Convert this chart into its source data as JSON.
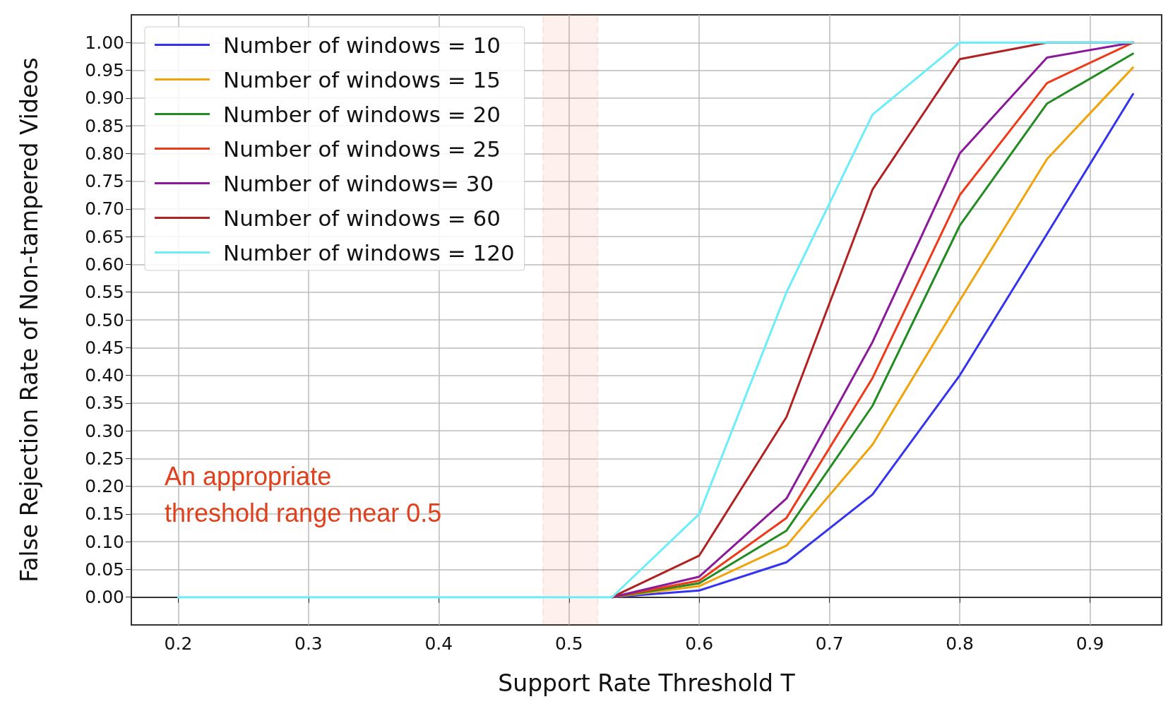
{
  "chart_data": {
    "type": "line",
    "xlabel": "Support Rate Threshold T",
    "ylabel": "False Rejection Rate of Non-tampered Videos",
    "x": [
      0.2,
      0.267,
      0.333,
      0.4,
      0.467,
      0.533,
      0.6,
      0.667,
      0.733,
      0.8,
      0.867,
      0.933
    ],
    "series": [
      {
        "name": "Number of windows = 10",
        "color": "#3333f0",
        "values": [
          null,
          null,
          null,
          null,
          null,
          0,
          0.012,
          0.063,
          0.185,
          0.4,
          0.655,
          0.907
        ]
      },
      {
        "name": "Number of windows = 15",
        "color": "#f0a30a",
        "values": [
          null,
          null,
          null,
          null,
          null,
          0,
          0.02,
          0.093,
          0.275,
          0.535,
          0.79,
          0.955
        ]
      },
      {
        "name": "Number of windows = 20",
        "color": "#228b22",
        "values": [
          null,
          null,
          null,
          null,
          null,
          0,
          0.025,
          0.12,
          0.345,
          0.67,
          0.89,
          0.98
        ]
      },
      {
        "name": "Number of windows = 25",
        "color": "#ee3a18",
        "values": [
          null,
          null,
          null,
          null,
          null,
          0,
          0.03,
          0.143,
          0.395,
          0.725,
          0.927,
          1.0
        ]
      },
      {
        "name": "Number of windows= 30",
        "color": "#8b1a9b",
        "values": [
          null,
          null,
          null,
          null,
          null,
          0,
          0.037,
          0.178,
          0.46,
          0.8,
          0.973,
          1.0
        ]
      },
      {
        "name": "Number of windows = 60",
        "color": "#b22222",
        "values": [
          null,
          null,
          null,
          null,
          null,
          0,
          0.075,
          0.325,
          0.735,
          0.97,
          1.0,
          1.0
        ]
      },
      {
        "name": "Number of windows = 120",
        "color": "#6ceefa",
        "values": [
          0,
          0,
          0,
          0,
          0,
          0,
          0.15,
          0.55,
          0.87,
          1.0,
          1.0,
          1.0
        ]
      }
    ],
    "xlim": [
      0.164,
      0.955
    ],
    "xticks": [
      0.2,
      0.3,
      0.4,
      0.5,
      0.6,
      0.7,
      0.8,
      0.9
    ],
    "ylim": [
      -0.05,
      1.05
    ],
    "yticks": [
      {
        "value": 0,
        "label": "0.00"
      },
      {
        "value": 0.05,
        "label": "0.05"
      },
      {
        "value": 0.1,
        "label": "0.10"
      },
      {
        "value": 0.15,
        "label": "0.15"
      },
      {
        "value": 0.2,
        "label": "0.20"
      },
      {
        "value": 0.25,
        "label": "0.25"
      },
      {
        "value": 0.3,
        "label": "0.30"
      },
      {
        "value": 0.35,
        "label": "0.35"
      },
      {
        "value": 0.4,
        "label": "0.40"
      },
      {
        "value": 0.45,
        "label": "0.45"
      },
      {
        "value": 0.5,
        "label": "0.50"
      },
      {
        "value": 0.55,
        "label": "0.55"
      },
      {
        "value": 0.6,
        "label": "0.60"
      },
      {
        "value": 0.65,
        "label": "0.65"
      },
      {
        "value": 0.7,
        "label": "0.70"
      },
      {
        "value": 0.75,
        "label": "0.75"
      },
      {
        "value": 0.8,
        "label": "0.80"
      },
      {
        "value": 0.85,
        "label": "0.85"
      },
      {
        "value": 0.9,
        "label": "0.90"
      },
      {
        "value": 0.95,
        "label": "0.95"
      },
      {
        "value": 1.0,
        "label": "1.00"
      }
    ],
    "bands": [
      {
        "axis": "x",
        "from": 0.48,
        "to": 0.522,
        "color": "#e0401c"
      }
    ],
    "annotations": [
      "An appropriate\nthreshold range near 0.5"
    ],
    "grid": true,
    "legend": "top left",
    "marker": "none",
    "line_style": "solid"
  }
}
